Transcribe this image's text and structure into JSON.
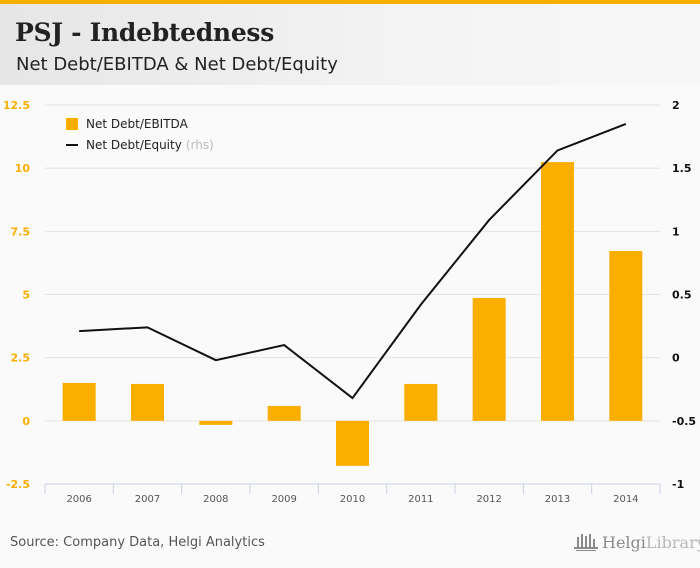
{
  "header": {
    "title": "PSJ - Indebtedness",
    "subtitle": "Net Debt/EBITDA & Net Debt/Equity"
  },
  "footer": {
    "source": "Source: Company Data, Helgi Analytics",
    "logo_part1": "Helgi",
    "logo_part2": "Library."
  },
  "legend": {
    "bar_label": "Net Debt/EBITDA",
    "line_label": "Net Debt/Equity",
    "line_suffix": "(rhs)"
  },
  "colors": {
    "bar": "#f9ae00",
    "line": "#111111",
    "left_axis_text": "#f9ae00",
    "right_axis_text": "#111111",
    "grid": "#e3e3e3",
    "x_axis": "#c8d2e6"
  },
  "chart_data": {
    "type": "bar",
    "title": "PSJ - Indebtedness",
    "subtitle": "Net Debt/EBITDA & Net Debt/Equity",
    "categories": [
      "2006",
      "2007",
      "2008",
      "2009",
      "2010",
      "2011",
      "2012",
      "2013",
      "2014"
    ],
    "series": [
      {
        "name": "Net Debt/EBITDA",
        "type": "bar",
        "axis": "left",
        "values": [
          1.5,
          1.46,
          -0.16,
          0.59,
          -1.78,
          1.46,
          4.86,
          10.24,
          6.72
        ]
      },
      {
        "name": "Net Debt/Equity",
        "type": "line",
        "axis": "right",
        "values": [
          0.21,
          0.24,
          -0.02,
          0.1,
          -0.32,
          0.42,
          1.09,
          1.64,
          1.85
        ]
      }
    ],
    "left_axis": {
      "ylim": [
        -2.5,
        12.5
      ],
      "ticks": [
        "12.5",
        "10",
        "7.5",
        "5",
        "2.5",
        "0",
        "-2.5"
      ],
      "tick_values": [
        12.5,
        10,
        7.5,
        5,
        2.5,
        0,
        -2.5
      ]
    },
    "right_axis": {
      "ylim": [
        -1,
        2
      ],
      "ticks": [
        "2",
        "1.5",
        "1",
        "0.5",
        "0",
        "-0.5",
        "-1"
      ],
      "tick_values": [
        2,
        1.5,
        1,
        0.5,
        0,
        -0.5,
        -1
      ]
    },
    "xlabel": "",
    "ylabel": "",
    "grid": true,
    "legend_position": "top-left"
  }
}
